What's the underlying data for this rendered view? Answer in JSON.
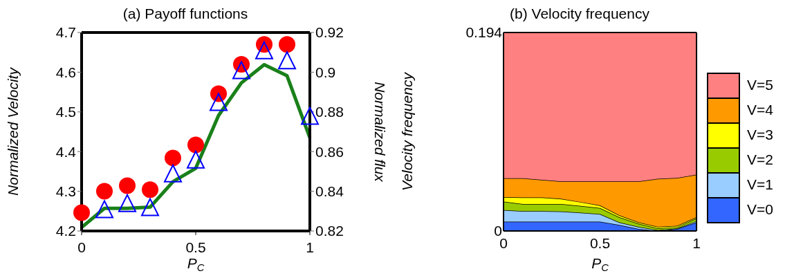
{
  "chart_data": [
    {
      "type": "line",
      "title": "(a) Payoff functions",
      "xlabel": "P$_{C}$",
      "ylabel": "Normalized Velocity",
      "y2label": "Normalized flux",
      "x": [
        0,
        0.1,
        0.2,
        0.3,
        0.4,
        0.5,
        0.6,
        0.7,
        0.8,
        0.9,
        1
      ],
      "series": [
        {
          "type": "line",
          "color": "#1a801a",
          "marker": "none",
          "values": [
            4.209,
            4.257,
            4.257,
            4.26,
            4.324,
            4.358,
            4.491,
            4.573,
            4.619,
            4.591,
            4.435
          ]
        },
        {
          "type": "scatter",
          "color": "#ff0000",
          "marker": "circle",
          "values": [
            4.246,
            4.3,
            4.314,
            4.304,
            4.384,
            4.417,
            4.546,
            4.62,
            4.67,
            4.67,
            null
          ]
        },
        {
          "type": "scatter",
          "axis": "y2",
          "color": "#0000ff",
          "marker": "triangle",
          "values": [
            null,
            0.831,
            0.834,
            0.832,
            0.849,
            0.856,
            0.885,
            0.901,
            0.911,
            0.906,
            0.878
          ]
        }
      ],
      "xlim": [
        0,
        1
      ],
      "xticks": [
        0,
        0.5,
        1
      ],
      "ylim": [
        4.2,
        4.7
      ],
      "yticks": [
        4.2,
        4.3,
        4.4,
        4.5,
        4.6,
        4.7
      ],
      "y2lim": [
        0.82,
        0.92
      ],
      "y2ticks": [
        0.82,
        0.84,
        0.86,
        0.88,
        0.9,
        0.92
      ],
      "grid": false,
      "legend": false
    },
    {
      "type": "area",
      "stacked": true,
      "title": "(b) Velocity frequency",
      "xlabel": "P$_{C}$",
      "ylabel": "Velocity frequency",
      "x": [
        0,
        0.1,
        0.2,
        0.3,
        0.4,
        0.5,
        0.6,
        0.7,
        0.8,
        0.9,
        1
      ],
      "series": [
        {
          "name": "V=0",
          "color": "#3366ff",
          "values": [
            0.0092,
            0.0092,
            0.0092,
            0.0092,
            0.0092,
            0.0092,
            0.0059,
            0.002,
            0,
            0.002,
            0.0084
          ]
        },
        {
          "name": "V=1",
          "color": "#99ccff",
          "values": [
            0.0112,
            0.0102,
            0.0102,
            0.0099,
            0.0087,
            0.0074,
            0.0025,
            0.0021,
            0.0008,
            0.0006,
            0.0013
          ]
        },
        {
          "name": "V=2",
          "color": "#99cc00",
          "values": [
            0.0084,
            0.0069,
            0.0069,
            0.0072,
            0.0066,
            0.0059,
            0.0051,
            0.003,
            0.0018,
            0.0012,
            0.0026
          ]
        },
        {
          "name": "V=3",
          "color": "#ffff00",
          "values": [
            0.0044,
            0.0064,
            0.0064,
            0.0051,
            0.0038,
            0.0025,
            0.0018,
            0.0013,
            0.0015,
            0.0013,
            0.0012
          ]
        },
        {
          "name": "V=4",
          "color": "#ff9900",
          "values": [
            0.0184,
            0.0189,
            0.0173,
            0.0171,
            0.0202,
            0.0235,
            0.0332,
            0.0401,
            0.0469,
            0.0467,
            0.0416
          ]
        },
        {
          "name": "V=5",
          "color": "#ff8080",
          "values": [
            0.1424,
            0.1424,
            0.144,
            0.1455,
            0.1455,
            0.1455,
            0.1455,
            0.1455,
            0.143,
            0.1422,
            0.1389
          ]
        }
      ],
      "xlim": [
        0,
        1
      ],
      "xticks": [
        0,
        0.5,
        1
      ],
      "ylim": [
        0,
        0.194
      ],
      "yticks": [
        0,
        0.194
      ],
      "grid": false,
      "legend": "right"
    }
  ]
}
